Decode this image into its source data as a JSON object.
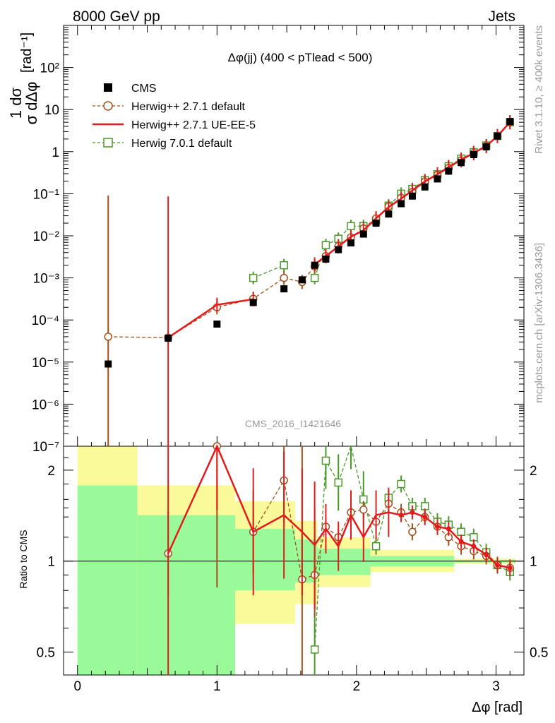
{
  "header": {
    "left": "8000 GeV pp",
    "right": "Jets"
  },
  "side_text": {
    "top": "Rivet 3.1.10, ≥ 400k events",
    "bottom": "mcplots.cern.ch [arXiv:1306.3436]"
  },
  "watermark": "CMS_2016_I1421646",
  "colors": {
    "cms": "#000000",
    "herwig_default": "#a0521a",
    "herwig_ueee5": "#e41a1c",
    "herwig7": "#4a9a2a",
    "band_green": "#9afa9a",
    "band_yellow": "#fafa9a"
  },
  "chart_data": [
    {
      "type": "scatter",
      "title": "Δφ(jj) (400 < pTlead <  500)",
      "ylabel": "1 dσ / σ dΔφ [rad⁻¹]",
      "xlabel": "",
      "yscale": "log",
      "xlim": [
        -0.1,
        3.2
      ],
      "ylim": [
        1e-07,
        1000
      ],
      "y_ticks": [
        "10⁻⁷",
        "10⁻⁶",
        "10⁻⁵",
        "10⁻⁴",
        "10⁻³",
        "10⁻²",
        "10⁻¹",
        "1",
        "10",
        "10²"
      ],
      "legend": [
        "CMS",
        "Herwig++ 2.7.1 default",
        "Herwig++ 2.7.1 UE-EE-5",
        "Herwig 7.0.1 default"
      ],
      "x": [
        0.22,
        0.65,
        1.0,
        1.26,
        1.48,
        1.61,
        1.7,
        1.78,
        1.87,
        1.96,
        2.05,
        2.14,
        2.23,
        2.32,
        2.4,
        2.49,
        2.58,
        2.66,
        2.75,
        2.84,
        2.93,
        3.01,
        3.1
      ],
      "series": [
        {
          "name": "CMS",
          "values": [
            9e-06,
            3.7e-05,
            8e-05,
            0.00026,
            0.00055,
            0.0009,
            0.002,
            0.0028,
            0.0047,
            0.0068,
            0.011,
            0.02,
            0.033,
            0.058,
            0.088,
            0.145,
            0.225,
            0.345,
            0.55,
            0.85,
            1.3,
            2.35,
            5.2
          ]
        },
        {
          "name": "Herwig++ 2.7.1 default",
          "values": [
            4e-05,
            3.8e-05,
            0.0002,
            0.00032,
            0.001,
            0.0008,
            0.0019,
            0.0033,
            0.0057,
            0.0092,
            0.015,
            0.026,
            0.05,
            0.08,
            0.11,
            0.195,
            0.28,
            0.41,
            0.62,
            0.92,
            1.35,
            2.35,
            5.0
          ]
        },
        {
          "name": "Herwig++ 2.7.1 UE-EE-5",
          "values": [
            null,
            3.8e-05,
            0.00023,
            0.00031,
            null,
            null,
            0.0021,
            0.0033,
            0.0056,
            0.0095,
            0.0135,
            0.026,
            0.048,
            0.076,
            0.12,
            0.195,
            0.29,
            0.43,
            0.64,
            0.93,
            1.35,
            2.35,
            5.0
          ]
        },
        {
          "name": "Herwig 7.0.1 default",
          "values": [
            null,
            null,
            null,
            0.001,
            0.002,
            null,
            0.001,
            0.006,
            0.0085,
            0.017,
            0.017,
            0.023,
            0.052,
            0.1,
            0.13,
            0.21,
            0.29,
            0.45,
            0.68,
            0.97,
            1.4,
            2.35,
            5.0
          ]
        }
      ]
    },
    {
      "type": "scatter",
      "title": "",
      "xlabel": "Δφ [rad]",
      "ylabel": "Ratio to CMS",
      "yscale": "log",
      "xlim": [
        -0.1,
        3.2
      ],
      "ylim": [
        0.42,
        2.4
      ],
      "x_ticks": [
        "0",
        "1",
        "2",
        "3"
      ],
      "y_ticks": [
        "0.5",
        "1",
        "2"
      ],
      "x": [
        0.22,
        0.65,
        1.0,
        1.26,
        1.48,
        1.61,
        1.7,
        1.78,
        1.87,
        1.96,
        2.05,
        2.14,
        2.23,
        2.32,
        2.4,
        2.49,
        2.58,
        2.66,
        2.75,
        2.84,
        2.93,
        3.01,
        3.1
      ],
      "series": [
        {
          "name": "Herwig++ 2.7.1 default",
          "values": [
            null,
            1.06,
            2.4,
            1.25,
            1.85,
            0.87,
            0.9,
            1.3,
            1.2,
            1.45,
            1.48,
            1.35,
            1.55,
            1.45,
            1.25,
            1.4,
            1.3,
            1.2,
            1.12,
            1.08,
            1.04,
            0.97,
            0.95
          ]
        },
        {
          "name": "Herwig++ 2.7.1 UE-EE-5",
          "values": [
            null,
            1.06,
            2.4,
            1.25,
            1.42,
            1.25,
            1.13,
            1.28,
            1.12,
            1.42,
            1.2,
            1.42,
            1.45,
            1.42,
            1.45,
            1.4,
            1.3,
            1.28,
            1.16,
            1.12,
            1.05,
            0.97,
            0.95
          ]
        },
        {
          "name": "Herwig 7.0.1 default",
          "values": [
            null,
            null,
            null,
            null,
            null,
            null,
            0.51,
            2.15,
            1.82,
            2.5,
            1.6,
            1.12,
            1.62,
            1.8,
            1.52,
            1.52,
            1.35,
            1.32,
            1.25,
            1.2,
            1.07,
            0.97,
            0.92
          ]
        }
      ],
      "bands": [
        {
          "x_range": [
            0.0,
            0.43
          ],
          "green": [
            0.42,
            1.78
          ],
          "yellow": [
            0.42,
            2.4
          ]
        },
        {
          "x_range": [
            0.43,
            1.13
          ],
          "green": [
            0.42,
            1.42
          ],
          "yellow": [
            0.42,
            1.78
          ]
        },
        {
          "x_range": [
            1.13,
            1.56
          ],
          "green": [
            0.8,
            1.28
          ],
          "yellow": [
            0.62,
            1.58
          ]
        },
        {
          "x_range": [
            1.56,
            1.72
          ],
          "green": [
            0.85,
            1.18
          ],
          "yellow": [
            0.72,
            1.36
          ]
        },
        {
          "x_range": [
            1.72,
            2.1
          ],
          "green": [
            0.9,
            1.1
          ],
          "yellow": [
            0.82,
            1.2
          ]
        },
        {
          "x_range": [
            2.1,
            2.7
          ],
          "green": [
            0.96,
            1.04
          ],
          "yellow": [
            0.92,
            1.09
          ]
        },
        {
          "x_range": [
            2.7,
            3.14
          ],
          "green": [
            0.99,
            1.01
          ],
          "yellow": [
            0.98,
            1.02
          ]
        }
      ]
    }
  ]
}
